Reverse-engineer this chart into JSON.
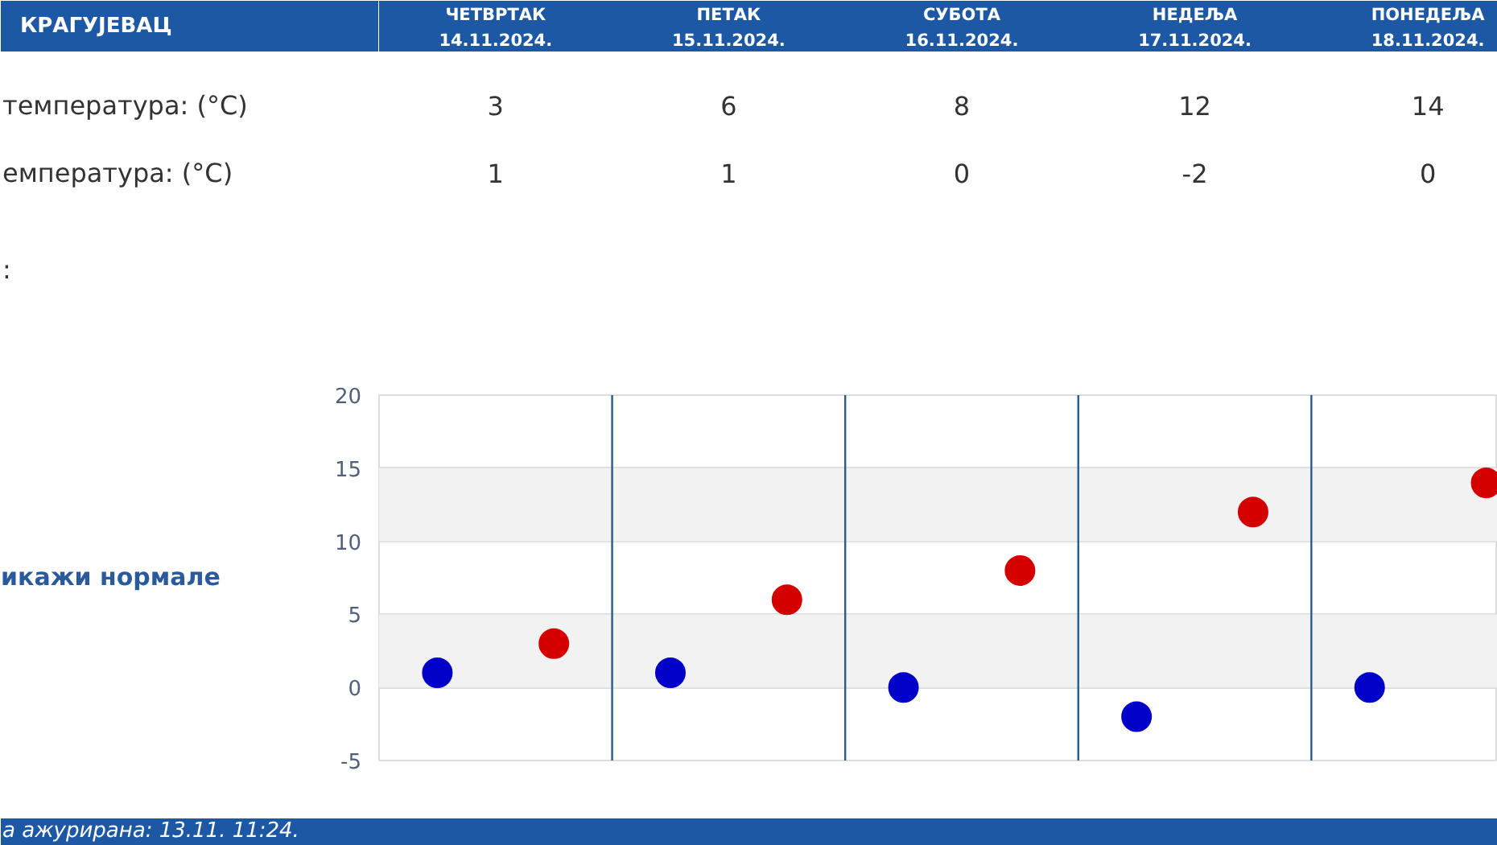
{
  "chart_data": [
    {
      "type": "other",
      "title": "КРАГУЈЕВАЦ",
      "annotations": [
        "температура: (°C)",
        "емпература: (°C)",
        ":",
        "ЧЕТВРТАК",
        "14.11.2024.",
        "ПЕТАК",
        "15.11.2024.",
        "СУБОТА",
        "16.11.2024.",
        "НЕДЕЉА",
        "17.11.2024.",
        "ПОНЕДЕЉА",
        "18.11.2024.",
        "3",
        "6",
        "8",
        "12",
        "14",
        "1",
        "1",
        "0",
        "-2",
        "0"
      ]
    },
    {
      "type": "scatter",
      "categories": [
        null,
        null,
        null,
        null,
        null,
        null,
        null,
        null,
        null,
        null
      ],
      "series": [
        {
          "color": "#d40000",
          "values": [
            null,
            3,
            null,
            6,
            null,
            8,
            null,
            12,
            null,
            14
          ]
        },
        {
          "color": "#0000c8",
          "values": [
            1,
            null,
            1,
            null,
            0,
            null,
            -2,
            null,
            0,
            null
          ]
        }
      ],
      "ylim": [
        -5,
        20
      ],
      "yticks": [
        -5,
        0,
        5,
        10,
        15,
        20
      ],
      "grid": "y",
      "tick_labels": "y",
      "marker": "circle",
      "bands": [
        {
          "axis": "y",
          "from": 0,
          "to": 5,
          "color": "#f2f2f2"
        },
        {
          "axis": "y",
          "from": 10,
          "to": 15,
          "color": "#f2f2f2"
        }
      ],
      "annotations": [
        "икажи нормале",
        "а ажурирана:  13.11. 11:24."
      ]
    }
  ]
}
